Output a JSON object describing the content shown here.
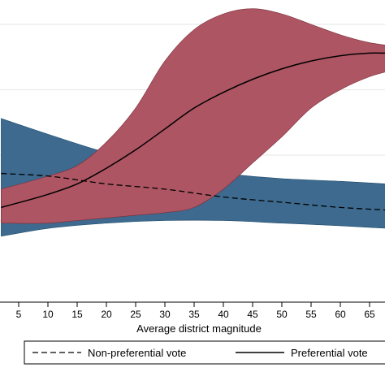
{
  "chart_data": {
    "type": "line",
    "xlabel": "Average district magnitude",
    "x_ticks": [
      5,
      10,
      15,
      20,
      25,
      30,
      35,
      40,
      45,
      50,
      55,
      60,
      65
    ],
    "xlim": [
      2,
      68
    ],
    "ylim": [
      0,
      1
    ],
    "grid": "horizontal",
    "legend_position": "bottom",
    "legend_entries": [
      "Non-preferential vote",
      "Preferential vote"
    ],
    "colors": {
      "nonpref_band": "#3d6a8e",
      "pref_band": "#ad5562",
      "pref_band_edge": "#7a2d3a",
      "nonpref_band_edge": "#1f4a6b",
      "gridline": "#e6e6e6",
      "axis": "#000000"
    },
    "series": [
      {
        "name": "Non-preferential vote",
        "style": "dashed",
        "x": [
          2,
          10,
          20,
          30,
          40,
          50,
          60,
          68
        ],
        "y": [
          0.43,
          0.42,
          0.39,
          0.37,
          0.34,
          0.32,
          0.3,
          0.29
        ],
        "lower": [
          0.19,
          0.22,
          0.24,
          0.25,
          0.25,
          0.24,
          0.23,
          0.22
        ],
        "upper": [
          0.64,
          0.58,
          0.51,
          0.46,
          0.43,
          0.41,
          0.4,
          0.39
        ]
      },
      {
        "name": "Preferential vote",
        "style": "solid",
        "x": [
          2,
          10,
          15,
          20,
          25,
          30,
          35,
          40,
          45,
          50,
          55,
          60,
          65,
          68
        ],
        "y": [
          0.3,
          0.35,
          0.39,
          0.45,
          0.52,
          0.6,
          0.68,
          0.74,
          0.79,
          0.83,
          0.86,
          0.88,
          0.89,
          0.89
        ],
        "lower": [
          0.24,
          0.24,
          0.25,
          0.26,
          0.27,
          0.28,
          0.3,
          0.37,
          0.47,
          0.57,
          0.68,
          0.75,
          0.8,
          0.82
        ],
        "upper": [
          0.37,
          0.42,
          0.46,
          0.55,
          0.68,
          0.86,
          0.98,
          1.04,
          1.06,
          1.04,
          1.0,
          0.96,
          0.93,
          0.92
        ]
      }
    ]
  }
}
